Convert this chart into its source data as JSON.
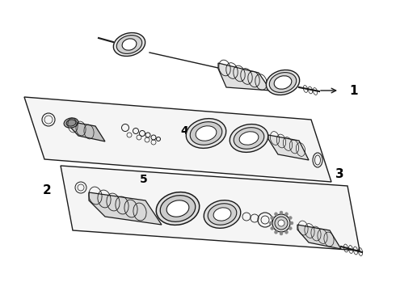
{
  "background_color": "#ffffff",
  "line_color": "#1a1a1a",
  "label_color": "#000000",
  "fig_w": 4.9,
  "fig_h": 3.6,
  "dpi": 100
}
